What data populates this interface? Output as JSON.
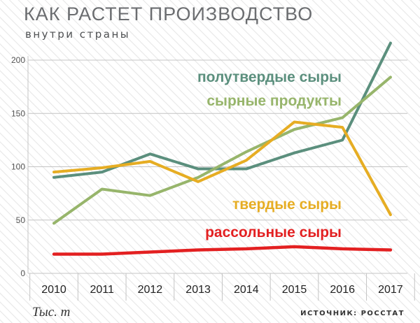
{
  "header": {
    "title": "КАК РАСТЕТ ПРОИЗВОДСТВО",
    "subtitle": "внутри страны"
  },
  "footer": {
    "unit_label": "Тыс. т",
    "source": "ИСТОЧНИК: РОССТАТ"
  },
  "chart_data": {
    "type": "line",
    "title": "КАК РАСТЕТ ПРОИЗВОДСТВО",
    "subtitle": "внутри страны",
    "xlabel": "",
    "ylabel": "Тыс. т",
    "categories": [
      "2010",
      "2011",
      "2012",
      "2013",
      "2014",
      "2015",
      "2016",
      "2017"
    ],
    "ylim": [
      0,
      200
    ],
    "yticks": [
      0,
      50,
      100,
      150,
      200
    ],
    "grid": true,
    "series": [
      {
        "name": "полутвердые сыры",
        "color": "#5b8f7d",
        "values": [
          90,
          95,
          112,
          98,
          98,
          113,
          125,
          216
        ]
      },
      {
        "name": "сырные продукты",
        "color": "#97b56b",
        "values": [
          47,
          79,
          73,
          90,
          114,
          135,
          146,
          184
        ]
      },
      {
        "name": "твердые сыры",
        "color": "#e6ad23",
        "values": [
          95,
          99,
          105,
          86,
          106,
          142,
          137,
          55
        ]
      },
      {
        "name": "рассольные сыры",
        "color": "#e32021",
        "values": [
          18,
          18,
          20,
          22,
          23,
          25,
          23,
          22
        ]
      }
    ]
  }
}
